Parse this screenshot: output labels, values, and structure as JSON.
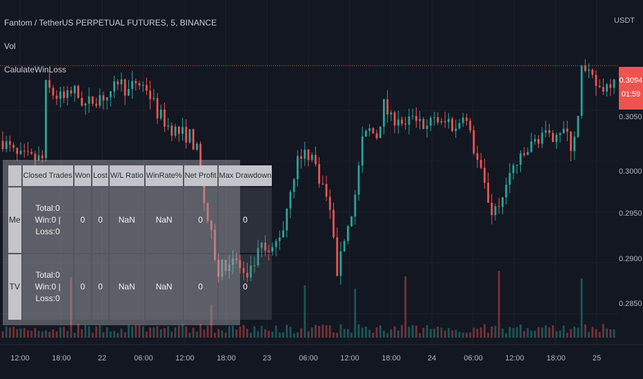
{
  "chart": {
    "title": "Fantom / TetherUS PERPETUAL FUTURES, 5, BINANCE",
    "indicators": [
      "Vol",
      "CalulateWinLoss"
    ],
    "currency": "USDT",
    "current_price": "0.3094",
    "countdown": "01:59",
    "colors": {
      "up": "#26a69a",
      "down": "#ef5350",
      "background": "#131722",
      "grid": "#1e222d",
      "price_line": "#ef5350"
    }
  },
  "chart_data": {
    "type": "candlestick",
    "symbol": "FTMUSDT",
    "timeframe": "5",
    "y_ticks": [
      "0.3050",
      "0.3000",
      "0.2950",
      "0.2900",
      "0.2850"
    ],
    "x_ticks": [
      "12:00",
      "18:00",
      "22",
      "06:00",
      "12:00",
      "18:00",
      "23",
      "06:00",
      "12:00",
      "18:00",
      "24",
      "06:00",
      "12:00",
      "18:00",
      "25"
    ],
    "ylim": [
      0.2825,
      0.3145
    ],
    "current_price": 0.3094,
    "price_path": [
      [
        0,
        0.302
      ],
      [
        4,
        0.3004
      ],
      [
        8,
        0.3002
      ],
      [
        11,
        0.3002
      ],
      [
        11.5,
        0.3075
      ],
      [
        14,
        0.3066
      ],
      [
        17,
        0.306
      ],
      [
        20,
        0.3068
      ],
      [
        23,
        0.3055
      ],
      [
        27,
        0.3065
      ],
      [
        30,
        0.3062
      ],
      [
        32,
        0.308
      ],
      [
        35,
        0.3068
      ],
      [
        37,
        0.3078
      ],
      [
        40,
        0.3072
      ],
      [
        43,
        0.3048
      ],
      [
        46,
        0.3035
      ],
      [
        49,
        0.3028
      ],
      [
        52,
        0.3025
      ],
      [
        54,
        0.301
      ],
      [
        56,
        0.296
      ],
      [
        58,
        0.2925
      ],
      [
        60,
        0.289
      ],
      [
        62,
        0.29
      ],
      [
        64,
        0.2905
      ],
      [
        66,
        0.2895
      ],
      [
        68,
        0.288
      ],
      [
        70,
        0.29
      ],
      [
        72,
        0.2915
      ],
      [
        74,
        0.2905
      ],
      [
        76,
        0.292
      ],
      [
        78,
        0.2935
      ],
      [
        80,
        0.2975
      ],
      [
        82,
        0.3
      ],
      [
        84,
        0.301
      ],
      [
        86,
        0.3005
      ],
      [
        88,
        0.2985
      ],
      [
        90,
        0.2965
      ],
      [
        92,
        0.293
      ],
      [
        93,
        0.288
      ],
      [
        94,
        0.2915
      ],
      [
        96,
        0.2935
      ],
      [
        98,
        0.2965
      ],
      [
        100,
        0.302
      ],
      [
        102,
        0.303
      ],
      [
        104,
        0.3025
      ],
      [
        106,
        0.3055
      ],
      [
        108,
        0.304
      ],
      [
        110,
        0.3045
      ],
      [
        112,
        0.303
      ],
      [
        114,
        0.3048
      ],
      [
        116,
        0.3042
      ],
      [
        118,
        0.303
      ],
      [
        120,
        0.3045
      ],
      [
        122,
        0.3035
      ],
      [
        124,
        0.304
      ],
      [
        126,
        0.303
      ],
      [
        128,
        0.305
      ],
      [
        130,
        0.3025
      ],
      [
        132,
        0.3
      ],
      [
        134,
        0.2975
      ],
      [
        136,
        0.295
      ],
      [
        138,
        0.296
      ],
      [
        140,
        0.2975
      ],
      [
        142,
        0.2995
      ],
      [
        144,
        0.3
      ],
      [
        146,
        0.301
      ],
      [
        148,
        0.302
      ],
      [
        150,
        0.3028
      ],
      [
        152,
        0.302
      ],
      [
        154,
        0.3032
      ],
      [
        156,
        0.303
      ],
      [
        158,
        0.3015
      ],
      [
        160,
        0.304
      ],
      [
        161,
        0.309
      ],
      [
        163,
        0.3082
      ],
      [
        166,
        0.3072
      ],
      [
        168,
        0.3075
      ],
      [
        170,
        0.3085
      ]
    ],
    "volume_spikes": [
      19,
      58,
      84,
      98,
      112,
      138,
      161
    ]
  },
  "table": {
    "headers": [
      "",
      "Closed Trades",
      "Won",
      "Lost",
      "W/L Ratio",
      "WinRate%",
      "Net Profit",
      "Max Drawdown"
    ],
    "rows": [
      {
        "label": "Me",
        "trades_line1": "Total:0",
        "trades_line2": "Win:0 | Loss:0",
        "won": "0",
        "lost": "0",
        "wl_ratio": "NaN",
        "winrate": "NaN",
        "net_profit": "0",
        "max_drawdown": "0"
      },
      {
        "label": "TV",
        "trades_line1": "Total:0",
        "trades_line2": "Win:0 | Loss:0",
        "won": "0",
        "lost": "0",
        "wl_ratio": "NaN",
        "winrate": "NaN",
        "net_profit": "0",
        "max_drawdown": "0"
      }
    ]
  }
}
